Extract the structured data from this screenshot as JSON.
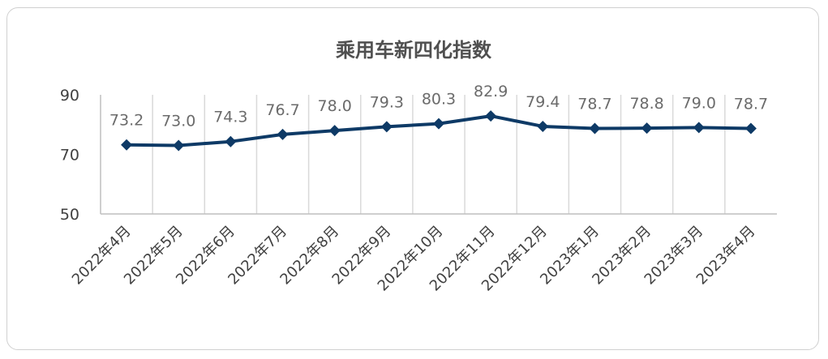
{
  "chart_data": {
    "type": "line",
    "title": "乘用车新四化指数",
    "categories": [
      "2022年4月",
      "2022年5月",
      "2022年6月",
      "2022年7月",
      "2022年8月",
      "2022年9月",
      "2022年10月",
      "2022年11月",
      "2022年12月",
      "2023年1月",
      "2023年2月",
      "2023年3月",
      "2023年4月"
    ],
    "series": [
      {
        "values": [
          73.2,
          73.0,
          74.3,
          76.7,
          78.0,
          79.3,
          80.3,
          82.9,
          79.4,
          78.7,
          78.8,
          79.0,
          78.7
        ],
        "labels": [
          "73.2",
          "73.0",
          "74.3",
          "76.7",
          "78.0",
          "79.3",
          "80.3",
          "82.9",
          "79.4",
          "78.7",
          "78.8",
          "79.0",
          "78.7"
        ],
        "color": "#0e3a66",
        "marker": "diamond"
      }
    ],
    "ylim": [
      50,
      90
    ],
    "yticks": [
      "50",
      "70",
      "90"
    ],
    "xlabel": "",
    "ylabel": "",
    "grid": "vertical",
    "legend": "none"
  }
}
